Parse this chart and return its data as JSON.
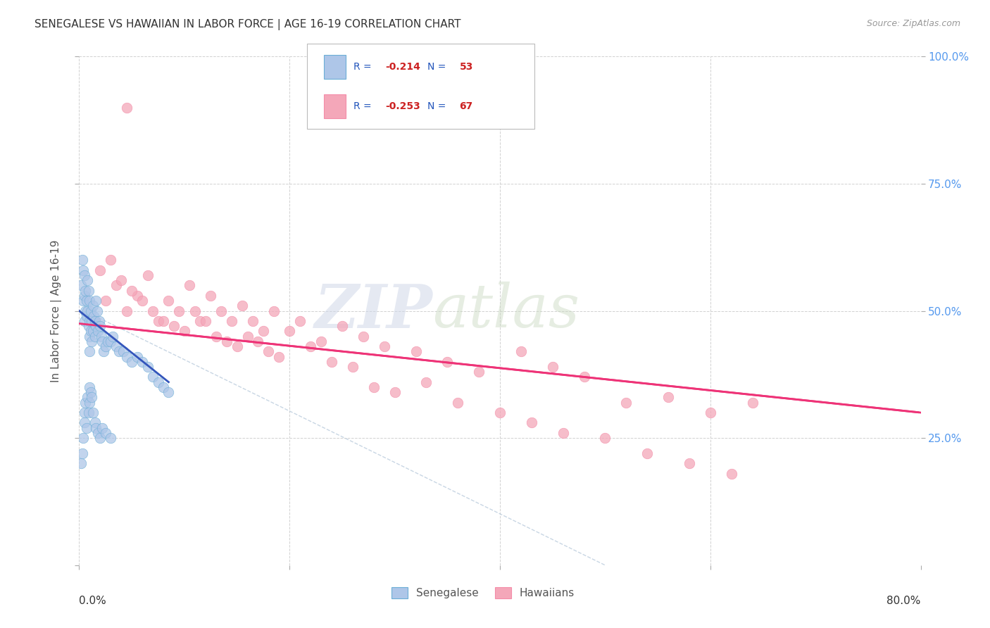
{
  "title": "SENEGALESE VS HAWAIIAN IN LABOR FORCE | AGE 16-19 CORRELATION CHART",
  "source": "Source: ZipAtlas.com",
  "ylabel": "In Labor Force | Age 16-19",
  "xlim": [
    0.0,
    80.0
  ],
  "ylim": [
    0.0,
    100.0
  ],
  "senegalese_color": "#aec6e8",
  "hawaiian_color": "#f4a7b9",
  "senegalese_edge": "#6baed6",
  "hawaiian_edge": "#f48ca8",
  "trend_blue": "#3355bb",
  "trend_pink": "#ee3377",
  "legend_r_blue": "-0.214",
  "legend_n_blue": "53",
  "legend_r_pink": "-0.253",
  "legend_n_pink": "67",
  "legend_label_blue": "Senegalese",
  "legend_label_pink": "Hawaiians",
  "watermark_zip": "ZIP",
  "watermark_atlas": "atlas",
  "background_color": "#ffffff",
  "grid_color": "#cccccc",
  "title_color": "#333333",
  "axis_label_color": "#555555",
  "right_tick_color": "#5599ee",
  "senegalese_x": [
    0.2,
    0.3,
    0.4,
    0.4,
    0.5,
    0.5,
    0.5,
    0.6,
    0.6,
    0.7,
    0.7,
    0.8,
    0.8,
    0.9,
    0.9,
    1.0,
    1.0,
    1.0,
    1.0,
    1.1,
    1.1,
    1.2,
    1.2,
    1.3,
    1.3,
    1.4,
    1.5,
    1.5,
    1.6,
    1.6,
    1.7,
    1.8,
    1.9,
    2.0,
    2.1,
    2.2,
    2.3,
    2.5,
    2.7,
    3.0,
    3.2,
    3.5,
    3.8,
    4.2,
    4.5,
    5.0,
    5.5,
    6.0,
    6.5,
    7.0,
    7.5,
    8.0,
    8.5
  ],
  "senegalese_y": [
    55,
    60,
    58,
    52,
    57,
    53,
    48,
    54,
    50,
    52,
    49,
    56,
    50,
    54,
    47,
    52,
    48,
    45,
    42,
    50,
    46,
    48,
    44,
    51,
    46,
    49,
    48,
    45,
    52,
    47,
    50,
    46,
    48,
    47,
    45,
    44,
    42,
    43,
    44,
    44,
    45,
    43,
    42,
    42,
    41,
    40,
    41,
    40,
    39,
    37,
    36,
    35,
    34
  ],
  "senegalese_x2": [
    0.2,
    0.3,
    0.4,
    0.5,
    0.5,
    0.6,
    0.7,
    0.8,
    0.9,
    1.0,
    1.0,
    1.1,
    1.2,
    1.3,
    1.5,
    1.6,
    1.8,
    2.0,
    2.2,
    2.5,
    3.0
  ],
  "senegalese_y2": [
    20,
    22,
    25,
    30,
    28,
    32,
    27,
    33,
    30,
    35,
    32,
    34,
    33,
    30,
    28,
    27,
    26,
    25,
    27,
    26,
    25
  ],
  "hawaiian_x": [
    1.5,
    2.5,
    3.5,
    4.5,
    5.5,
    6.5,
    7.5,
    8.5,
    9.5,
    10.5,
    11.5,
    12.5,
    13.5,
    14.5,
    15.5,
    16.5,
    17.5,
    18.5,
    20.0,
    21.0,
    23.0,
    25.0,
    27.0,
    29.0,
    32.0,
    35.0,
    38.0,
    42.0,
    45.0,
    48.0,
    52.0,
    56.0,
    60.0,
    64.0,
    2.0,
    3.0,
    4.0,
    5.0,
    6.0,
    7.0,
    8.0,
    9.0,
    10.0,
    11.0,
    12.0,
    13.0,
    14.0,
    15.0,
    16.0,
    17.0,
    18.0,
    19.0,
    22.0,
    24.0,
    26.0,
    28.0,
    30.0,
    33.0,
    36.0,
    40.0,
    43.0,
    46.0,
    50.0,
    54.0,
    58.0,
    62.0,
    4.5
  ],
  "hawaiian_y": [
    48,
    52,
    55,
    50,
    53,
    57,
    48,
    52,
    50,
    55,
    48,
    53,
    50,
    48,
    51,
    48,
    46,
    50,
    46,
    48,
    44,
    47,
    45,
    43,
    42,
    40,
    38,
    42,
    39,
    37,
    32,
    33,
    30,
    32,
    58,
    60,
    56,
    54,
    52,
    50,
    48,
    47,
    46,
    50,
    48,
    45,
    44,
    43,
    45,
    44,
    42,
    41,
    43,
    40,
    39,
    35,
    34,
    36,
    32,
    30,
    28,
    26,
    25,
    22,
    20,
    18,
    90
  ],
  "haw_trend_x0": 0.0,
  "haw_trend_y0": 47.5,
  "haw_trend_x1": 80.0,
  "haw_trend_y1": 30.0,
  "sen_trend_x0": 0.0,
  "sen_trend_y0": 50.0,
  "sen_trend_x1": 8.5,
  "sen_trend_y1": 36.0,
  "diag_x0": 0.5,
  "diag_y0": 50.0,
  "diag_x1": 50.0,
  "diag_y1": 0.0
}
